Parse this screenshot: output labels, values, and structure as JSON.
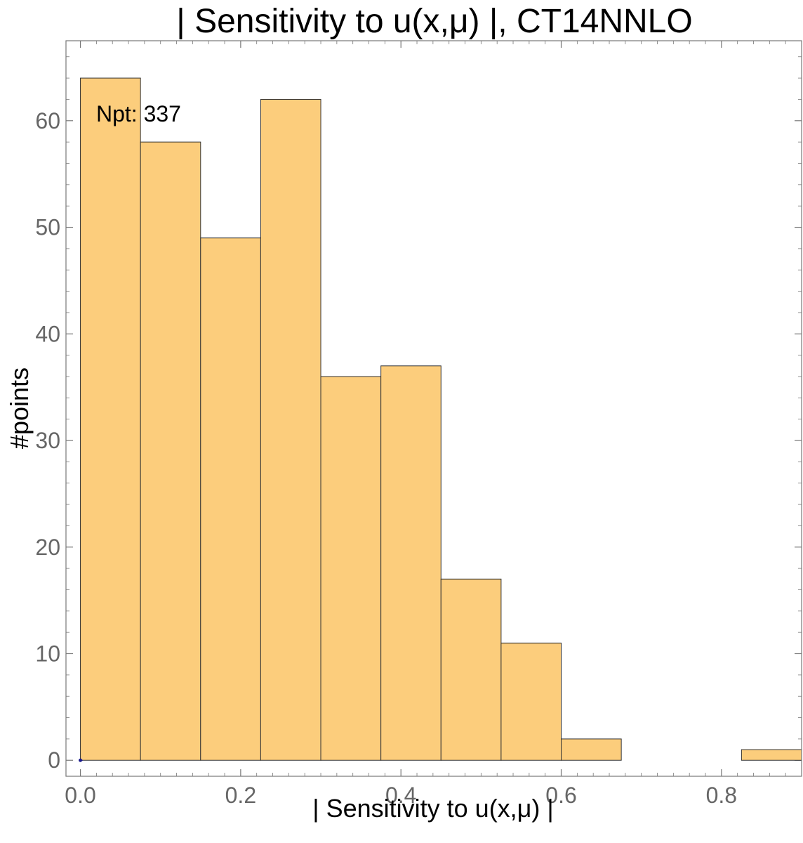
{
  "chart_data": {
    "type": "bar",
    "title": "| Sensitivity to u(x,μ) |, CT14NNLO",
    "xlabel": "| Sensitivity to u(x,μ) |",
    "ylabel": "#points",
    "annotation": "Npt: 337",
    "bin_edges": [
      0,
      0.075,
      0.15,
      0.225,
      0.3,
      0.375,
      0.45,
      0.525,
      0.6,
      0.675,
      0.75,
      0.825,
      0.9
    ],
    "values": [
      64,
      58,
      49,
      62,
      36,
      37,
      17,
      11,
      2,
      0,
      0,
      1
    ],
    "xlim": [
      -0.018,
      0.9
    ],
    "ylim": [
      -1.5,
      67.5
    ],
    "xticks": [
      0.0,
      0.2,
      0.4,
      0.6,
      0.8
    ],
    "xtick_labels": [
      "0.0",
      "0.2",
      "0.4",
      "0.6",
      "0.8"
    ],
    "yticks": [
      0,
      10,
      20,
      30,
      40,
      50,
      60
    ],
    "ytick_labels": [
      "0",
      "10",
      "20",
      "30",
      "40",
      "50",
      "60"
    ],
    "grid": false,
    "colors": {
      "bar_fill": "#fccd7c",
      "bar_edge": "#333333",
      "baseline": "#1a1a8c",
      "ticks": "#666666"
    }
  }
}
